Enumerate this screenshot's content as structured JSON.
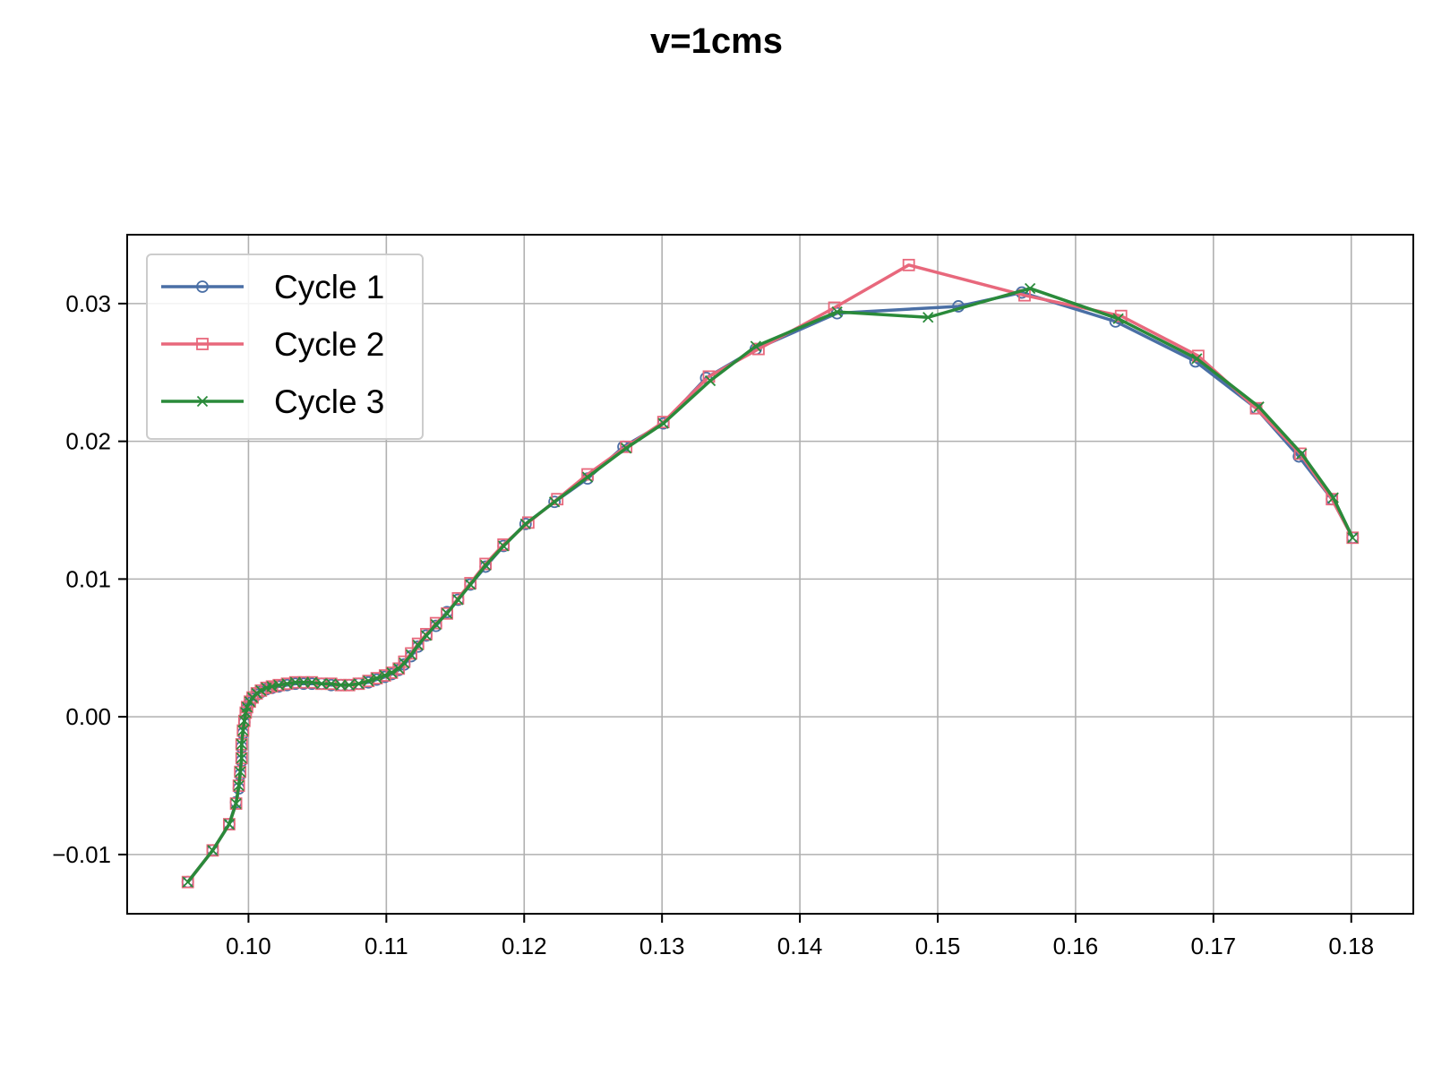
{
  "chart_data": {
    "type": "line",
    "title": "v=1cms",
    "xlabel": "",
    "ylabel": "",
    "xlim": [
      0.0912,
      0.1845
    ],
    "ylim": [
      -0.0143,
      0.035
    ],
    "grid": true,
    "legend_position": "top-left",
    "x_ticks": [
      {
        "value": 0.1,
        "label": "0.10"
      },
      {
        "value": 0.11,
        "label": "0.11"
      },
      {
        "value": 0.12,
        "label": "0.12"
      },
      {
        "value": 0.13,
        "label": "0.13"
      },
      {
        "value": 0.14,
        "label": "0.14"
      },
      {
        "value": 0.15,
        "label": "0.15"
      },
      {
        "value": 0.16,
        "label": "0.16"
      },
      {
        "value": 0.17,
        "label": "0.17"
      },
      {
        "value": 0.18,
        "label": "0.18"
      }
    ],
    "y_ticks": [
      {
        "value": -0.01,
        "label": "−0.01"
      },
      {
        "value": 0.0,
        "label": "0.00"
      },
      {
        "value": 0.01,
        "label": "0.01"
      },
      {
        "value": 0.02,
        "label": "0.02"
      },
      {
        "value": 0.03,
        "label": "0.03"
      }
    ],
    "series": [
      {
        "name": "Cycle 1",
        "color": "#4a6fa5",
        "marker": "circle",
        "x": [
          0.0956,
          0.0974,
          0.0986,
          0.0991,
          0.0993,
          0.0994,
          0.0995,
          0.0995,
          0.0996,
          0.0997,
          0.0998,
          0.0999,
          0.1001,
          0.1003,
          0.1006,
          0.1009,
          0.1013,
          0.1017,
          0.1022,
          0.1028,
          0.1034,
          0.104,
          0.1046,
          0.1053,
          0.106,
          0.1067,
          0.1073,
          0.108,
          0.1087,
          0.1093,
          0.1099,
          0.1104,
          0.1109,
          0.1113,
          0.1118,
          0.1123,
          0.1129,
          0.1136,
          0.1144,
          0.1152,
          0.1161,
          0.1172,
          0.1185,
          0.1201,
          0.1222,
          0.1246,
          0.1272,
          0.1301,
          0.1332,
          0.1368,
          0.1427,
          0.1515,
          0.1561,
          0.1629,
          0.1687,
          0.1731,
          0.1762,
          0.1786,
          0.1801
        ],
        "y": [
          -0.012,
          -0.0097,
          -0.0078,
          -0.0062,
          -0.0052,
          -0.0042,
          -0.0032,
          -0.0022,
          -0.0012,
          -0.0004,
          0.0002,
          0.0006,
          0.001,
          0.0013,
          0.0016,
          0.0018,
          0.002,
          0.0021,
          0.0022,
          0.0023,
          0.0024,
          0.0024,
          0.0024,
          0.0024,
          0.0023,
          0.0023,
          0.0023,
          0.0024,
          0.0025,
          0.0027,
          0.0029,
          0.0031,
          0.0034,
          0.0038,
          0.0044,
          0.0051,
          0.0059,
          0.0066,
          0.0076,
          0.0085,
          0.0096,
          0.0109,
          0.0124,
          0.014,
          0.0156,
          0.0173,
          0.0196,
          0.0213,
          0.0246,
          0.0267,
          0.0293,
          0.0298,
          0.0308,
          0.0287,
          0.0258,
          0.0224,
          0.0189,
          0.0158,
          0.013
        ]
      },
      {
        "name": "Cycle 2",
        "color": "#e8687c",
        "marker": "square",
        "x": [
          0.0956,
          0.0974,
          0.0986,
          0.0991,
          0.0993,
          0.0994,
          0.0995,
          0.0995,
          0.0996,
          0.0997,
          0.0998,
          0.0999,
          0.1001,
          0.1003,
          0.1006,
          0.1009,
          0.1013,
          0.1017,
          0.1022,
          0.1028,
          0.1034,
          0.104,
          0.1046,
          0.1053,
          0.106,
          0.1067,
          0.1073,
          0.108,
          0.1087,
          0.1093,
          0.1099,
          0.1104,
          0.1109,
          0.1113,
          0.1118,
          0.1123,
          0.1129,
          0.1136,
          0.1144,
          0.1152,
          0.1161,
          0.1172,
          0.1185,
          0.1203,
          0.1224,
          0.1246,
          0.1274,
          0.1301,
          0.1334,
          0.137,
          0.1425,
          0.1479,
          0.1563,
          0.1633,
          0.1689,
          0.1731,
          0.1763,
          0.1786,
          0.1801
        ],
        "y": [
          -0.012,
          -0.0097,
          -0.0078,
          -0.0063,
          -0.005,
          -0.004,
          -0.003,
          -0.002,
          -0.001,
          -0.0003,
          0.0003,
          0.0007,
          0.0011,
          0.0014,
          0.0017,
          0.0019,
          0.0021,
          0.0022,
          0.0023,
          0.0024,
          0.0025,
          0.0025,
          0.0025,
          0.0024,
          0.0024,
          0.0023,
          0.0023,
          0.0024,
          0.0026,
          0.0028,
          0.003,
          0.0032,
          0.0035,
          0.004,
          0.0046,
          0.0053,
          0.006,
          0.0068,
          0.0075,
          0.0086,
          0.0097,
          0.0111,
          0.0125,
          0.0141,
          0.0158,
          0.0176,
          0.0196,
          0.0214,
          0.0247,
          0.0267,
          0.0297,
          0.0328,
          0.0306,
          0.0291,
          0.0262,
          0.0224,
          0.0191,
          0.0158,
          0.013
        ]
      },
      {
        "name": "Cycle 3",
        "color": "#2a8a3a",
        "marker": "x",
        "x": [
          0.0956,
          0.0974,
          0.0986,
          0.0991,
          0.0993,
          0.0994,
          0.0995,
          0.0995,
          0.0996,
          0.0997,
          0.0998,
          0.0999,
          0.1001,
          0.1003,
          0.1006,
          0.1009,
          0.1013,
          0.1017,
          0.1022,
          0.1028,
          0.1034,
          0.104,
          0.1046,
          0.1053,
          0.106,
          0.1067,
          0.1073,
          0.108,
          0.1087,
          0.1093,
          0.1099,
          0.1104,
          0.1109,
          0.1113,
          0.1118,
          0.1123,
          0.1129,
          0.1136,
          0.1144,
          0.1152,
          0.1161,
          0.1172,
          0.1185,
          0.1201,
          0.1222,
          0.1246,
          0.1274,
          0.1301,
          0.1335,
          0.1368,
          0.1427,
          0.1493,
          0.1567,
          0.1631,
          0.1688,
          0.1733,
          0.1764,
          0.1787,
          0.1801
        ],
        "y": [
          -0.012,
          -0.0097,
          -0.0078,
          -0.0063,
          -0.005,
          -0.004,
          -0.003,
          -0.002,
          -0.001,
          -0.0003,
          0.0003,
          0.0007,
          0.0011,
          0.0014,
          0.0017,
          0.0019,
          0.0021,
          0.0022,
          0.0023,
          0.0024,
          0.0025,
          0.0025,
          0.0025,
          0.0024,
          0.0024,
          0.0023,
          0.0023,
          0.0024,
          0.0026,
          0.0028,
          0.003,
          0.0032,
          0.0035,
          0.0039,
          0.0045,
          0.0052,
          0.0059,
          0.0067,
          0.0075,
          0.0085,
          0.0096,
          0.011,
          0.0124,
          0.014,
          0.0156,
          0.0174,
          0.0195,
          0.0213,
          0.0244,
          0.0269,
          0.0294,
          0.029,
          0.0311,
          0.0289,
          0.026,
          0.0225,
          0.0191,
          0.0159,
          0.013
        ]
      }
    ]
  }
}
